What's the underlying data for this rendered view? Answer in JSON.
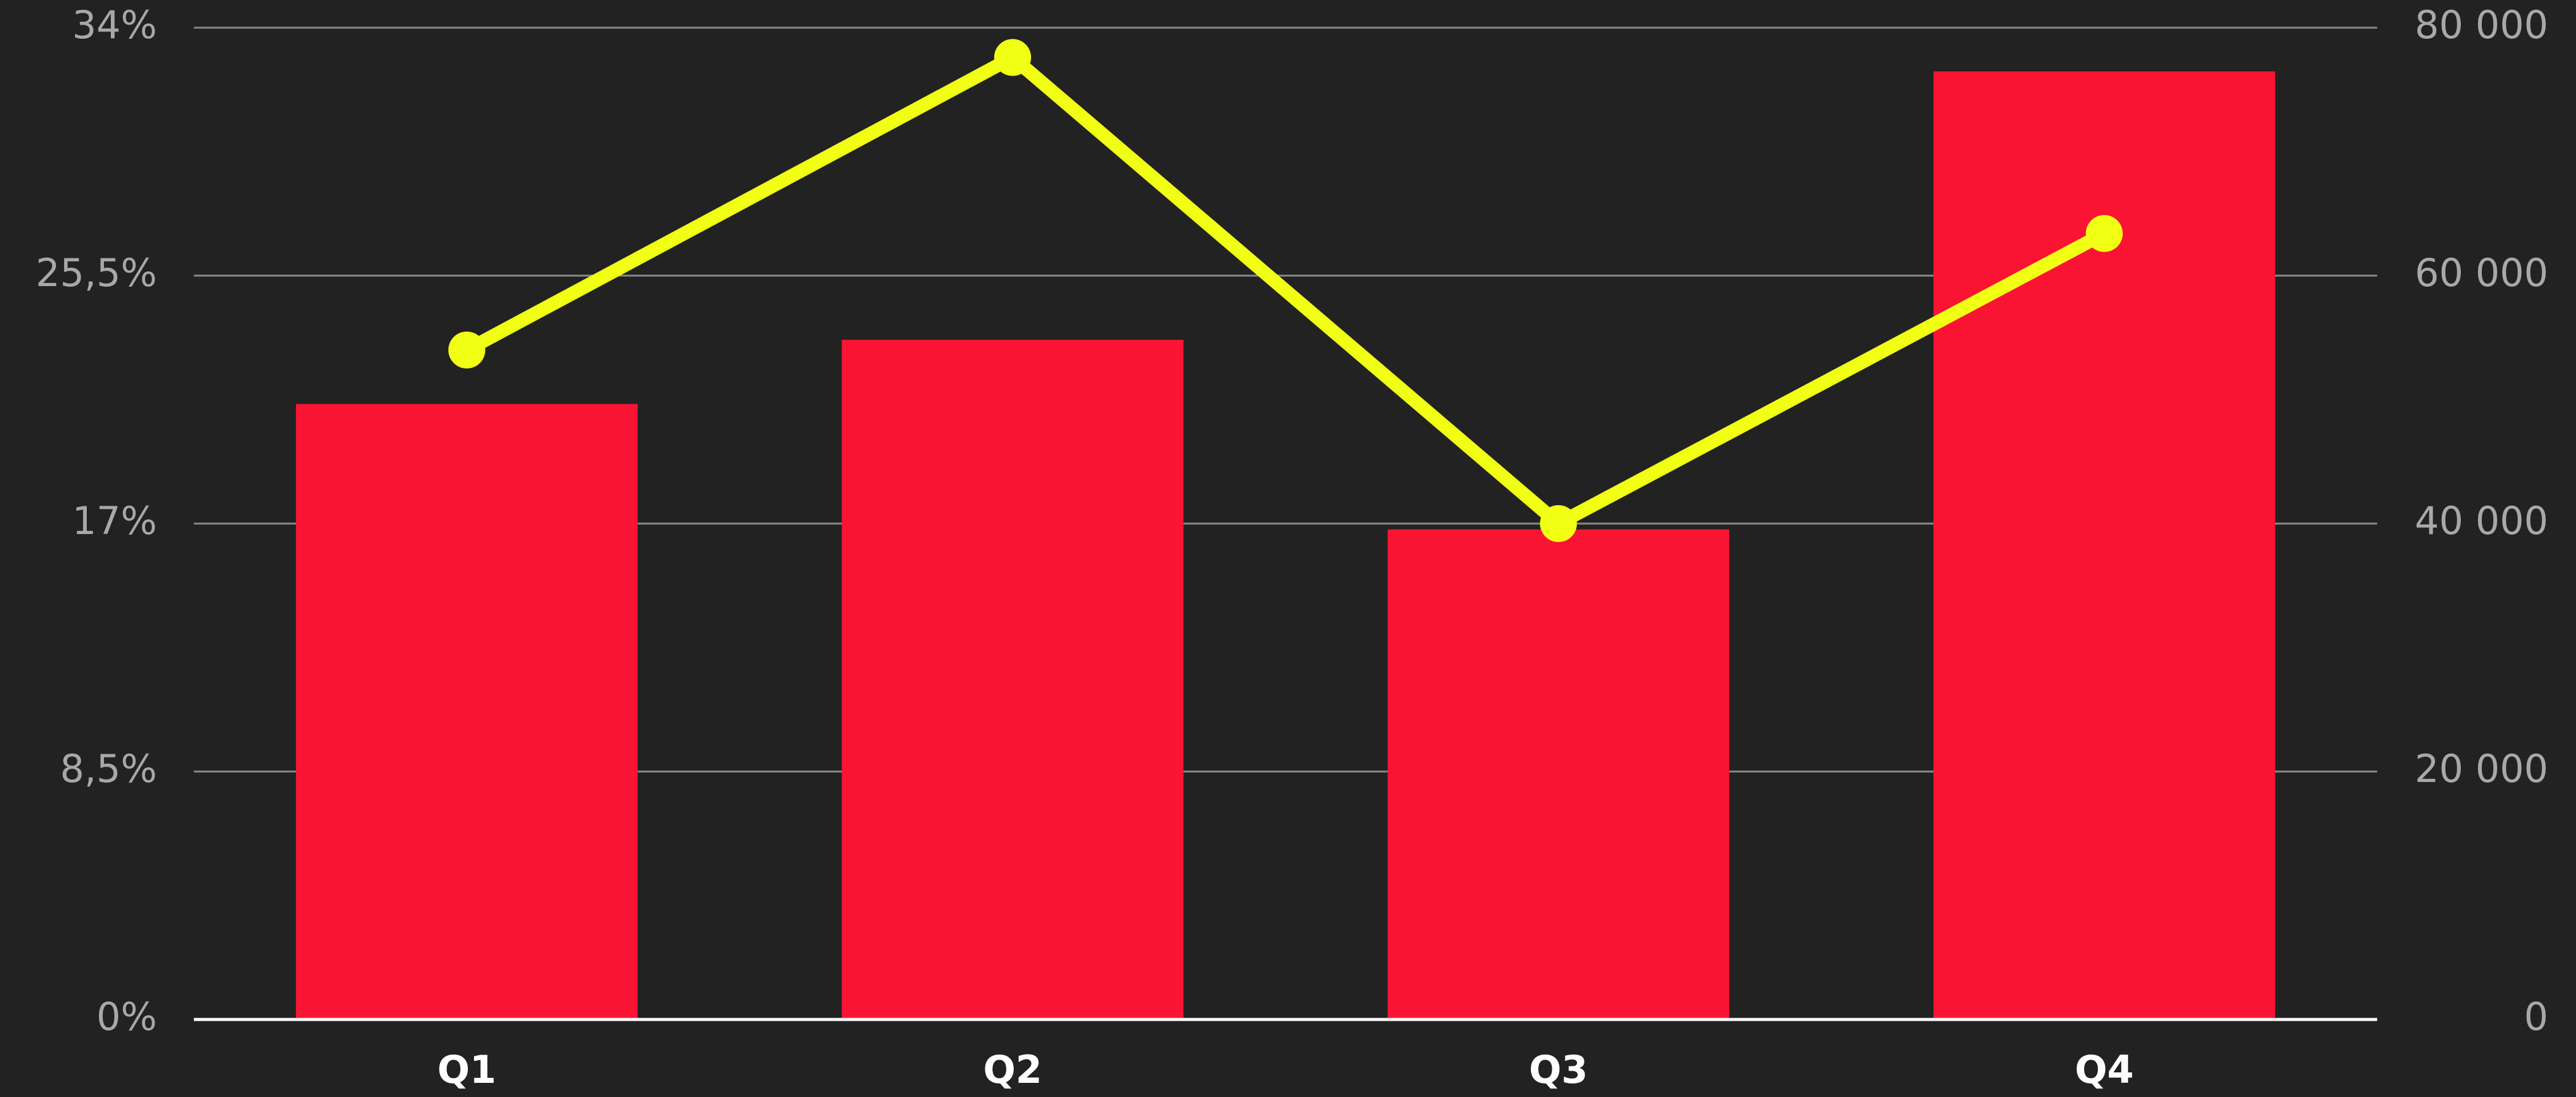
{
  "chart_data": {
    "type": "bar",
    "categories": [
      "Q1",
      "Q2",
      "Q3",
      "Q4"
    ],
    "series": [
      {
        "type": "bar",
        "color": "#f91433",
        "values": [
          21.1,
          23.3,
          16.8,
          32.5
        ]
      },
      {
        "type": "line",
        "axis": "y2",
        "color": "#f0ff14",
        "values": [
          54000,
          77600,
          40000,
          63400
        ]
      }
    ],
    "ylim": [
      0,
      34
    ],
    "yticks": [
      {
        "value": 0,
        "label": "0%"
      },
      {
        "value": 8.5,
        "label": "8,5%"
      },
      {
        "value": 17,
        "label": "17%"
      },
      {
        "value": 25.5,
        "label": "25,5%"
      },
      {
        "value": 34,
        "label": "34%"
      }
    ],
    "y2lim": [
      0,
      80000
    ],
    "y2ticks": [
      0,
      {
        "value": 20000,
        "label": "20 000"
      },
      {
        "value": 40000,
        "label": "40 000"
      },
      {
        "value": 60000,
        "label": "60 000"
      },
      {
        "value": 80000,
        "label": "80 000"
      }
    ],
    "grid": true
  }
}
